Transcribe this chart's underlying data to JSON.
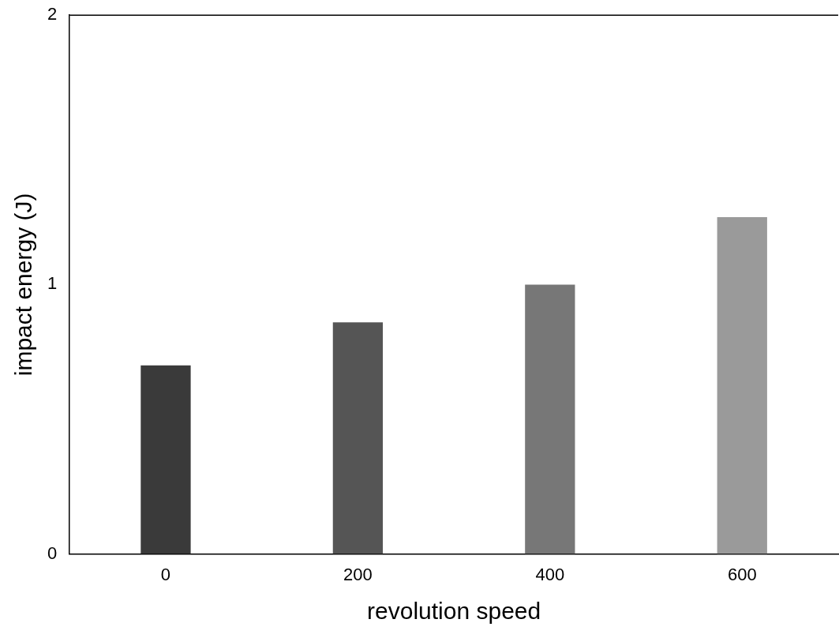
{
  "chart_data": {
    "type": "bar",
    "xlabel": "revolution speed",
    "ylabel": "impact energy (J)",
    "categories": [
      "0",
      "200",
      "400",
      "600"
    ],
    "values": [
      0.7,
      0.86,
      1.0,
      1.25
    ],
    "colors": [
      "#3a3a3a",
      "#555555",
      "#777777",
      "#9a9a9a"
    ],
    "ylim": [
      0,
      2
    ],
    "yticks": [
      0,
      1,
      2
    ],
    "grid": false
  }
}
